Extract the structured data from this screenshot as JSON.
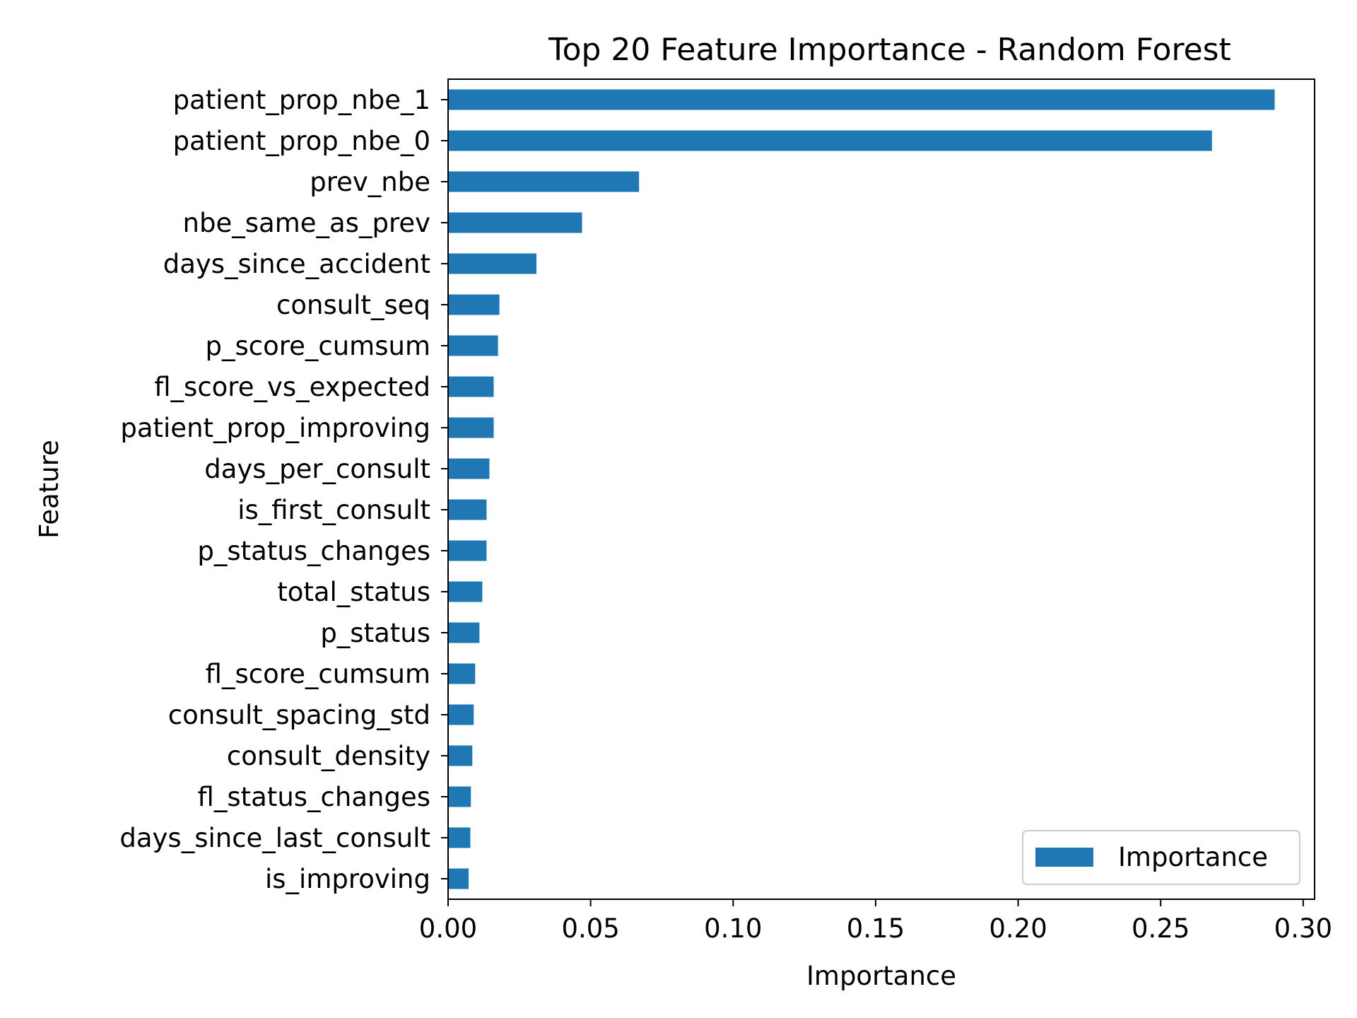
{
  "chart_data": {
    "type": "bar",
    "orientation": "horizontal",
    "title": "Top 20 Feature Importance - Random Forest",
    "xlabel": "Importance",
    "ylabel": "Feature",
    "xlim": [
      0,
      0.304
    ],
    "xticks": [
      0.0,
      0.05,
      0.1,
      0.15,
      0.2,
      0.25,
      0.3
    ],
    "xtick_labels": [
      "0.00",
      "0.05",
      "0.10",
      "0.15",
      "0.20",
      "0.25",
      "0.30"
    ],
    "grid": false,
    "legend_position": "lower-right",
    "series": [
      {
        "name": "Importance",
        "color": "#1f77b4",
        "categories": [
          "patient_prop_nbe_1",
          "patient_prop_nbe_0",
          "prev_nbe",
          "nbe_same_as_prev",
          "days_since_accident",
          "consult_seq",
          "p_score_cumsum",
          "fl_score_vs_expected",
          "patient_prop_improving",
          "days_per_consult",
          "is_first_consult",
          "p_status_changes",
          "total_status",
          "p_status",
          "fl_score_cumsum",
          "consult_spacing_std",
          "consult_density",
          "fl_status_changes",
          "days_since_last_consult",
          "is_improving"
        ],
        "values": [
          0.29,
          0.268,
          0.067,
          0.047,
          0.031,
          0.018,
          0.0175,
          0.016,
          0.016,
          0.0145,
          0.0135,
          0.0135,
          0.012,
          0.011,
          0.0095,
          0.009,
          0.0085,
          0.008,
          0.0078,
          0.0072
        ]
      }
    ]
  }
}
